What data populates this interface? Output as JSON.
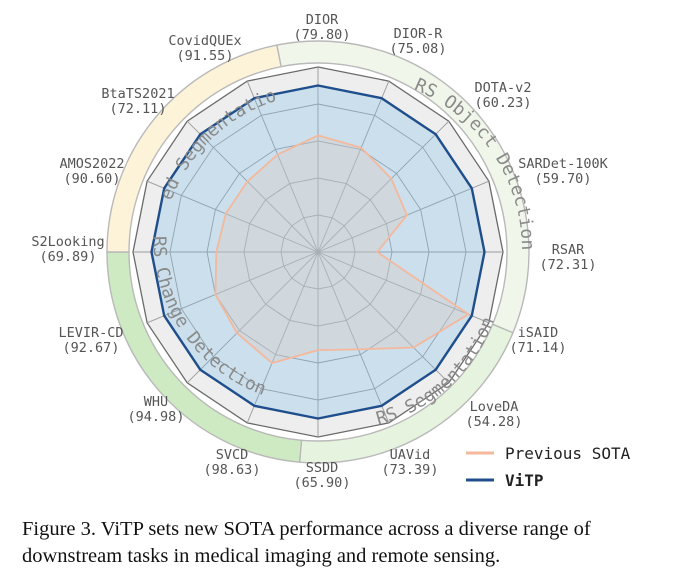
{
  "chart_data": {
    "type": "radar",
    "categories": [
      {
        "name": "DIOR",
        "value": "(79.80)"
      },
      {
        "name": "DIOR-R",
        "value": "(75.08)"
      },
      {
        "name": "DOTA-v2",
        "value": "(60.23)"
      },
      {
        "name": "SARDet-100K",
        "value": "(59.70)"
      },
      {
        "name": "RSAR",
        "value": "(72.31)"
      },
      {
        "name": "iSAID",
        "value": "(71.14)"
      },
      {
        "name": "LoveDA",
        "value": "(54.28)"
      },
      {
        "name": "UAVid",
        "value": "(73.39)"
      },
      {
        "name": "SSDD",
        "value": "(65.90)"
      },
      {
        "name": "SVCD",
        "value": "(98.63)"
      },
      {
        "name": "WHU",
        "value": "(94.98)"
      },
      {
        "name": "LEVIR-CD",
        "value": "(92.67)"
      },
      {
        "name": "S2Looking",
        "value": "(69.89)"
      },
      {
        "name": "AMOS2022",
        "value": "(90.60)"
      },
      {
        "name": "BtaTS2021",
        "value": "(72.11)"
      },
      {
        "name": "CovidQUEx",
        "value": "(91.55)"
      }
    ],
    "normalized_range": [
      0,
      1
    ],
    "series": [
      {
        "name": "Previous SOTA",
        "color": "#f4b89c",
        "values": [
          0.63,
          0.61,
          0.56,
          0.52,
          0.32,
          0.88,
          0.73,
          0.57,
          0.53,
          0.65,
          0.62,
          0.6,
          0.55,
          0.54,
          0.54,
          0.57
        ]
      },
      {
        "name": "ViTP",
        "color": "#1f4e8c",
        "values": [
          0.9,
          0.9,
          0.9,
          0.9,
          0.9,
          0.9,
          0.9,
          0.9,
          0.9,
          0.9,
          0.9,
          0.9,
          0.9,
          0.9,
          0.9,
          0.9
        ]
      }
    ],
    "groups": [
      {
        "name": "RS Object Detection",
        "color": "#f0f7ea"
      },
      {
        "name": "RS Segmentation",
        "color": "#e6f4df"
      },
      {
        "name": "RS Change Detection",
        "color": "#cdeac2"
      },
      {
        "name": "Med Segmentation",
        "color": "#fdf3d9"
      }
    ],
    "grid": true
  },
  "caption": "Figure 3. ViTP sets new SOTA performance across a diverse range of downstream tasks in medical imaging and remote sensing."
}
